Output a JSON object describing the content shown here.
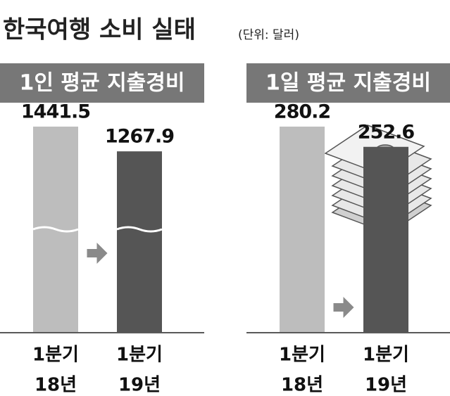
{
  "title": "한국여행 소비 실태",
  "unit": "(단위: 달러)",
  "chart_data": [
    {
      "type": "bar",
      "title": "1인 평균 지출경비",
      "categories": [
        [
          "1분기",
          "18년"
        ],
        [
          "1분기",
          "19년"
        ]
      ],
      "values": [
        1441.5,
        1267.9
      ],
      "colors": [
        "#bdbdbd",
        "#555555"
      ],
      "axis_break": true
    },
    {
      "type": "bar",
      "title": "1일 평균 지출경비",
      "categories": [
        [
          "1분기",
          "18년"
        ],
        [
          "1분기",
          "19년"
        ]
      ],
      "values": [
        280.2,
        252.6
      ],
      "colors": [
        "#bdbdbd",
        "#555555"
      ],
      "axis_break": false
    }
  ]
}
